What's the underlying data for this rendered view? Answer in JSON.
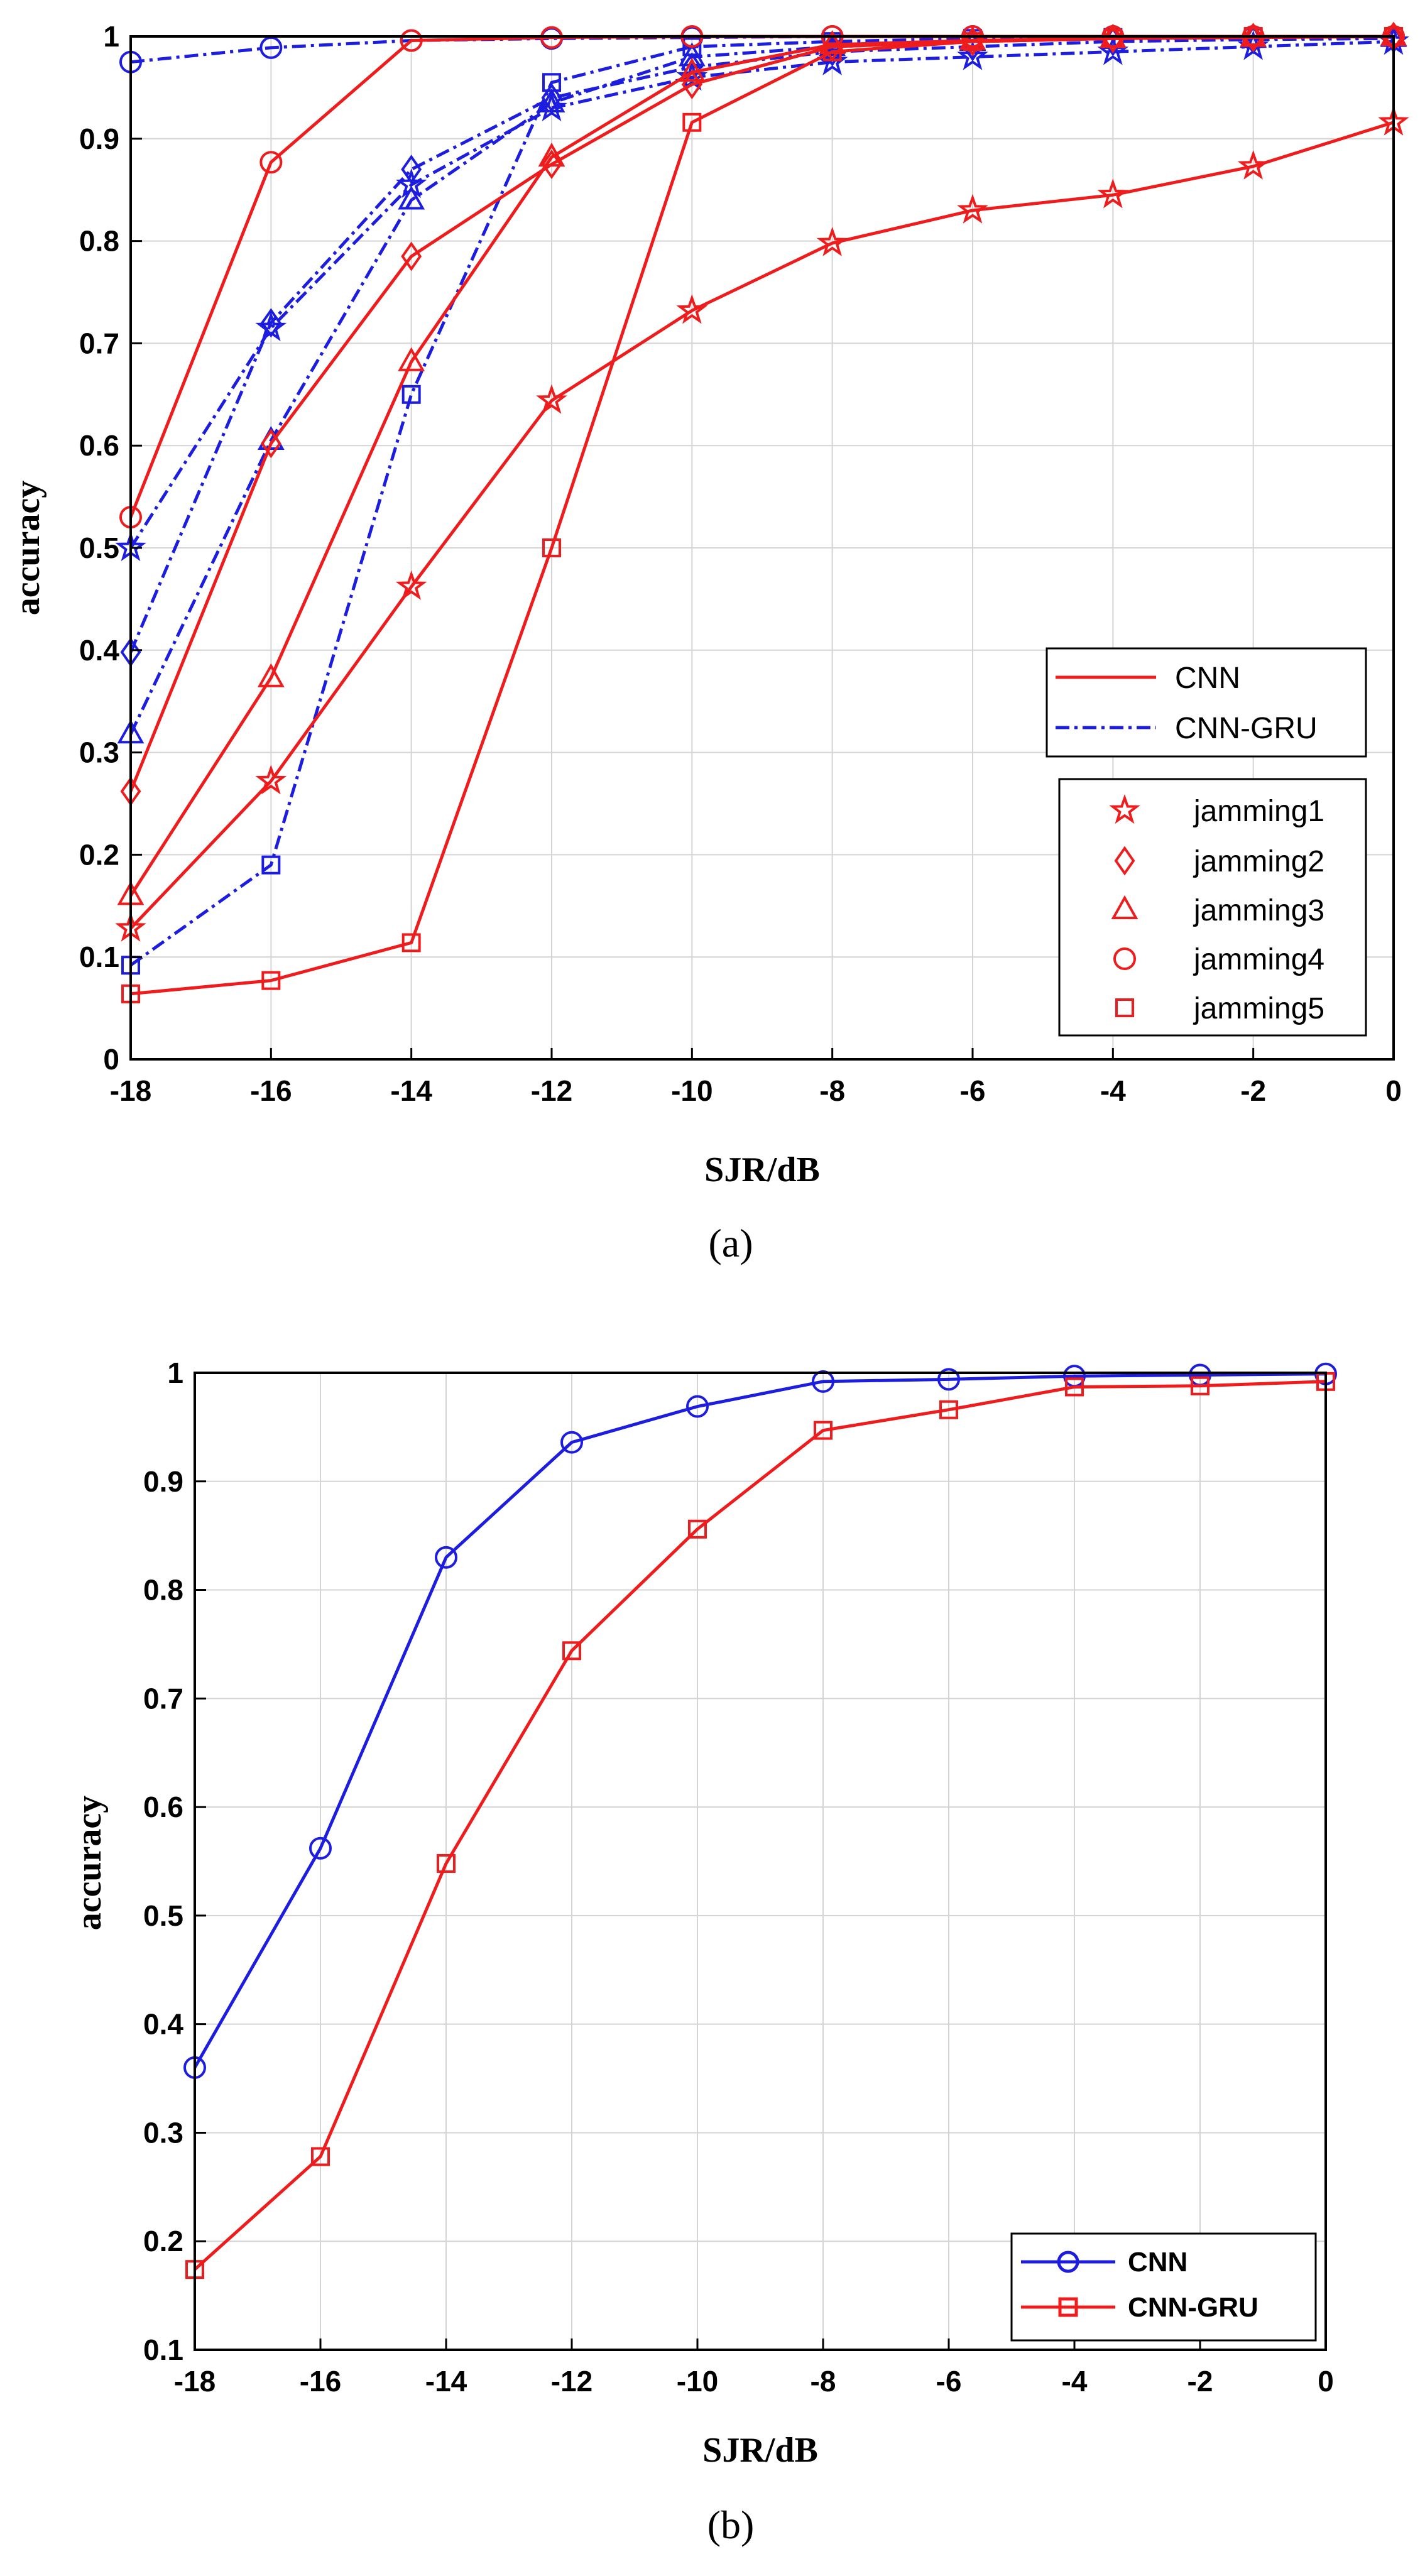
{
  "colors": {
    "red": "#ee1c1c",
    "blue": "#1d1de0"
  },
  "chart_data": [
    {
      "id": "a",
      "type": "line",
      "caption": "(a)",
      "title": "",
      "xlabel": "SJR/dB",
      "ylabel": "accuracy",
      "x": [
        -18,
        -16,
        -14,
        -12,
        -10,
        -8,
        -6,
        -4,
        -2,
        0
      ],
      "xlim": [
        -18,
        0
      ],
      "ylim": [
        0,
        1
      ],
      "xticks": [
        "-18",
        "-16",
        "-14",
        "-12",
        "-10",
        "-8",
        "-6",
        "-4",
        "-2",
        "0"
      ],
      "yticks": [
        "0",
        "0.1",
        "0.2",
        "0.3",
        "0.4",
        "0.5",
        "0.6",
        "0.7",
        "0.8",
        "0.9",
        "1"
      ],
      "grid": true,
      "legend_models": [
        {
          "label": "CNN",
          "color": "red",
          "dash": "solid"
        },
        {
          "label": "CNN-GRU",
          "color": "blue",
          "dash": "dashdot"
        }
      ],
      "legend_markers": [
        {
          "label": "jamming1",
          "marker": "star"
        },
        {
          "label": "jamming2",
          "marker": "diamond"
        },
        {
          "label": "jamming3",
          "marker": "triangle"
        },
        {
          "label": "jamming4",
          "marker": "circle"
        },
        {
          "label": "jamming5",
          "marker": "square"
        }
      ],
      "series": [
        {
          "name": "CNN-GRU jamming4",
          "model": "CNN-GRU",
          "marker": "circle",
          "values": [
            0.975,
            0.989,
            0.996,
            0.998,
            0.999,
            1.0,
            1.0,
            1.0,
            1.0,
            1.0
          ]
        },
        {
          "name": "CNN-GRU jamming1",
          "model": "CNN-GRU",
          "marker": "star",
          "values": [
            0.5,
            0.715,
            0.855,
            0.93,
            0.96,
            0.975,
            0.98,
            0.985,
            0.99,
            0.995
          ]
        },
        {
          "name": "CNN-GRU jamming2",
          "model": "CNN-GRU",
          "marker": "diamond",
          "values": [
            0.398,
            0.72,
            0.87,
            0.94,
            0.97,
            0.985,
            0.99,
            0.995,
            0.997,
            0.998
          ]
        },
        {
          "name": "CNN-GRU jamming3",
          "model": "CNN-GRU",
          "marker": "triangle",
          "values": [
            0.318,
            0.605,
            0.84,
            0.935,
            0.98,
            0.99,
            0.995,
            0.998,
            0.998,
            0.999
          ]
        },
        {
          "name": "CNN-GRU jamming5",
          "model": "CNN-GRU",
          "marker": "square",
          "values": [
            0.092,
            0.19,
            0.65,
            0.955,
            0.99,
            0.995,
            0.998,
            0.999,
            0.999,
            1.0
          ]
        },
        {
          "name": "CNN jamming4",
          "model": "CNN",
          "marker": "circle",
          "values": [
            0.53,
            0.877,
            0.996,
            0.999,
            1.0,
            1.0,
            1.0,
            1.0,
            1.0,
            1.0
          ]
        },
        {
          "name": "CNN jamming2",
          "model": "CNN",
          "marker": "diamond",
          "values": [
            0.262,
            0.602,
            0.785,
            0.875,
            0.953,
            0.99,
            0.995,
            0.998,
            0.999,
            1.0
          ]
        },
        {
          "name": "CNN jamming3",
          "model": "CNN",
          "marker": "triangle",
          "values": [
            0.16,
            0.373,
            0.682,
            0.882,
            0.965,
            0.992,
            0.996,
            0.998,
            0.999,
            1.0
          ]
        },
        {
          "name": "CNN jamming1",
          "model": "CNN",
          "marker": "star",
          "values": [
            0.128,
            0.272,
            0.462,
            0.644,
            0.732,
            0.798,
            0.83,
            0.845,
            0.873,
            0.916
          ]
        },
        {
          "name": "CNN jamming5",
          "model": "CNN",
          "marker": "square",
          "values": [
            0.064,
            0.077,
            0.114,
            0.5,
            0.916,
            0.985,
            0.995,
            0.998,
            1.0,
            1.0
          ]
        }
      ]
    },
    {
      "id": "b",
      "type": "line",
      "caption": "(b)",
      "title": "",
      "xlabel": "SJR/dB",
      "ylabel": "accuracy",
      "x": [
        -18,
        -16,
        -14,
        -12,
        -10,
        -8,
        -6,
        -4,
        -2,
        0
      ],
      "xlim": [
        -18,
        0
      ],
      "ylim": [
        0.1,
        1
      ],
      "xticks": [
        "-18",
        "-16",
        "-14",
        "-12",
        "-10",
        "-8",
        "-6",
        "-4",
        "-2",
        "0"
      ],
      "yticks": [
        "0.1",
        "0.2",
        "0.3",
        "0.4",
        "0.5",
        "0.6",
        "0.7",
        "0.8",
        "0.9",
        "1"
      ],
      "grid": true,
      "legend": "bottom-right",
      "series": [
        {
          "name": "CNN",
          "color": "blue",
          "marker": "circle",
          "values": [
            0.36,
            0.562,
            0.83,
            0.936,
            0.969,
            0.992,
            0.994,
            0.997,
            0.998,
            0.999
          ]
        },
        {
          "name": "CNN-GRU",
          "color": "red",
          "marker": "square",
          "values": [
            0.174,
            0.278,
            0.548,
            0.744,
            0.856,
            0.947,
            0.966,
            0.987,
            0.988,
            0.992
          ]
        }
      ]
    }
  ]
}
